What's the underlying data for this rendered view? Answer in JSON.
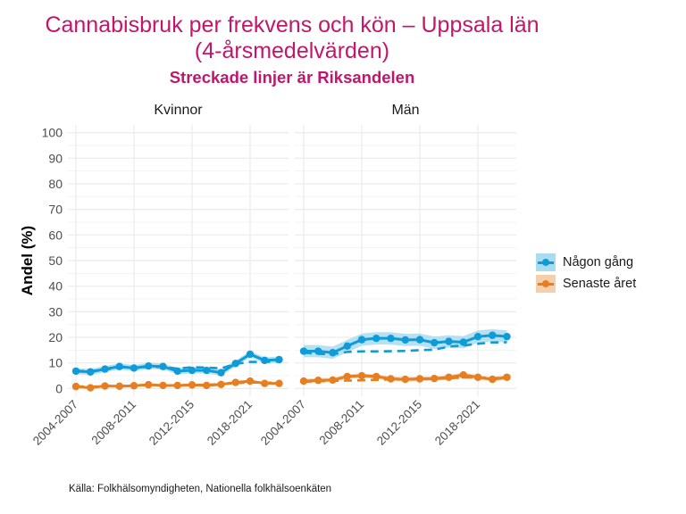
{
  "chart_data": {
    "type": "line",
    "title": "Cannabisbruk per frekvens och kön – Uppsala län",
    "title_line2": "(4-årsmedelvärden)",
    "subtitle": "Streckade linjer är Riksandelen",
    "ylabel": "Andel (%)",
    "xlabel": "",
    "ylim": [
      -3,
      103
    ],
    "yticks": [
      0,
      10,
      20,
      30,
      40,
      50,
      60,
      70,
      80,
      90,
      100
    ],
    "grid": true,
    "x_tick_labels": [
      {
        "index": 0,
        "label": "2004-2007"
      },
      {
        "index": 4,
        "label": "2008-2011"
      },
      {
        "index": 8,
        "label": "2012-2015"
      },
      {
        "index": 12,
        "label": "2018-2021"
      }
    ],
    "n_points": 15,
    "legend_position": "right",
    "legend": [
      {
        "name": "Någon gång",
        "color": "#0f9bd7",
        "band_color": "#a9dcf1"
      },
      {
        "name": "Senaste året",
        "color": "#e67e22",
        "band_color": "#f5cfac"
      }
    ],
    "caption": "Källa: Folkhälsomyndigheten, Nationella folkhälsoenkäten",
    "panels": [
      {
        "name": "Kvinnor",
        "series": [
          {
            "name": "Någon gång",
            "values": [
              6.8,
              6.5,
              7.6,
              8.6,
              8.0,
              8.8,
              8.6,
              6.8,
              7.1,
              7.1,
              6.2,
              9.8,
              13.4,
              11.0,
              11.3
            ],
            "ci_half": 1.2,
            "riket": [
              6.9,
              6.8,
              7.4,
              8.3,
              8.0,
              8.5,
              8.4,
              7.8,
              8.3,
              8.2,
              7.9,
              9.6,
              10.4,
              10.4,
              10.6
            ]
          },
          {
            "name": "Senaste året",
            "values": [
              0.8,
              0.3,
              1.0,
              0.9,
              1.1,
              1.5,
              1.2,
              1.2,
              1.4,
              1.2,
              1.6,
              2.4,
              2.9,
              2.0,
              2.0
            ],
            "ci_half": 0.5,
            "riket": [
              0.9,
              0.7,
              1.0,
              1.0,
              1.1,
              1.3,
              1.2,
              1.3,
              1.4,
              1.5,
              1.7,
              2.1,
              2.4,
              2.3,
              2.3
            ]
          }
        ]
      },
      {
        "name": "Män",
        "series": [
          {
            "name": "Någon gång",
            "values": [
              14.6,
              14.6,
              14.0,
              16.6,
              19.1,
              19.6,
              19.6,
              19.0,
              19.1,
              17.9,
              18.4,
              18.1,
              20.3,
              20.8,
              20.3
            ],
            "ci_half": 2.4,
            "riket": [
              14.0,
              13.6,
              13.4,
              14.3,
              14.5,
              14.5,
              14.6,
              14.7,
              15.0,
              15.2,
              16.4,
              16.8,
              17.5,
              18.0,
              18.1
            ]
          },
          {
            "name": "Senaste året",
            "values": [
              2.9,
              3.2,
              3.3,
              4.7,
              5.0,
              4.7,
              3.8,
              3.6,
              3.8,
              3.9,
              4.4,
              5.3,
              4.4,
              3.6,
              4.4
            ],
            "ci_half": 0.9,
            "riket": [
              2.7,
              2.8,
              3.0,
              3.1,
              3.2,
              3.4,
              3.5,
              3.6,
              3.7,
              3.8,
              4.0,
              4.3,
              4.3,
              4.1,
              4.2
            ]
          }
        ]
      }
    ]
  }
}
